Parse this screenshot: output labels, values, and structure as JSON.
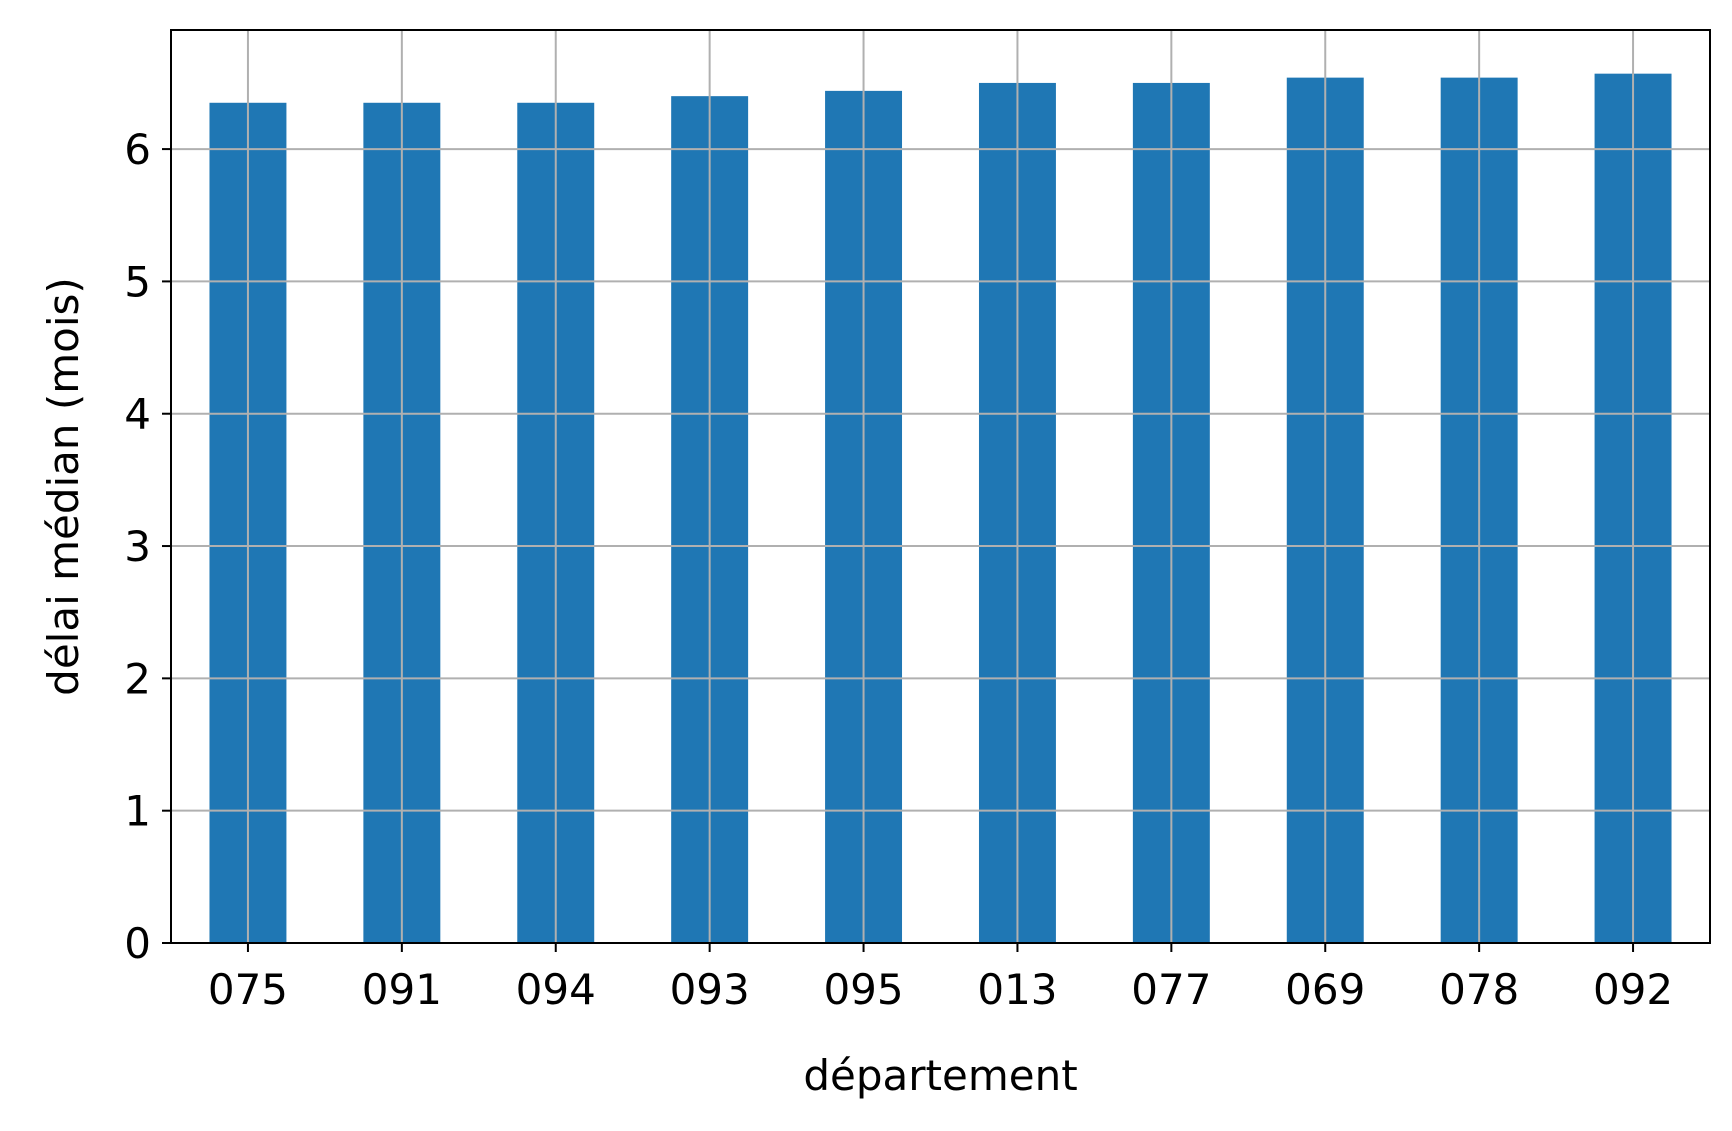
{
  "chart_data": {
    "type": "bar",
    "title": "",
    "xlabel": "département",
    "ylabel": "délai médian (mois)",
    "categories": [
      "075",
      "091",
      "094",
      "093",
      "095",
      "013",
      "077",
      "069",
      "078",
      "092"
    ],
    "values": [
      6.35,
      6.35,
      6.35,
      6.4,
      6.44,
      6.5,
      6.5,
      6.54,
      6.54,
      6.57
    ],
    "ylim": [
      0,
      6.9
    ],
    "yticks": [
      0,
      1,
      2,
      3,
      4,
      5,
      6
    ],
    "grid": true,
    "bar_color": "#1f77b4"
  }
}
